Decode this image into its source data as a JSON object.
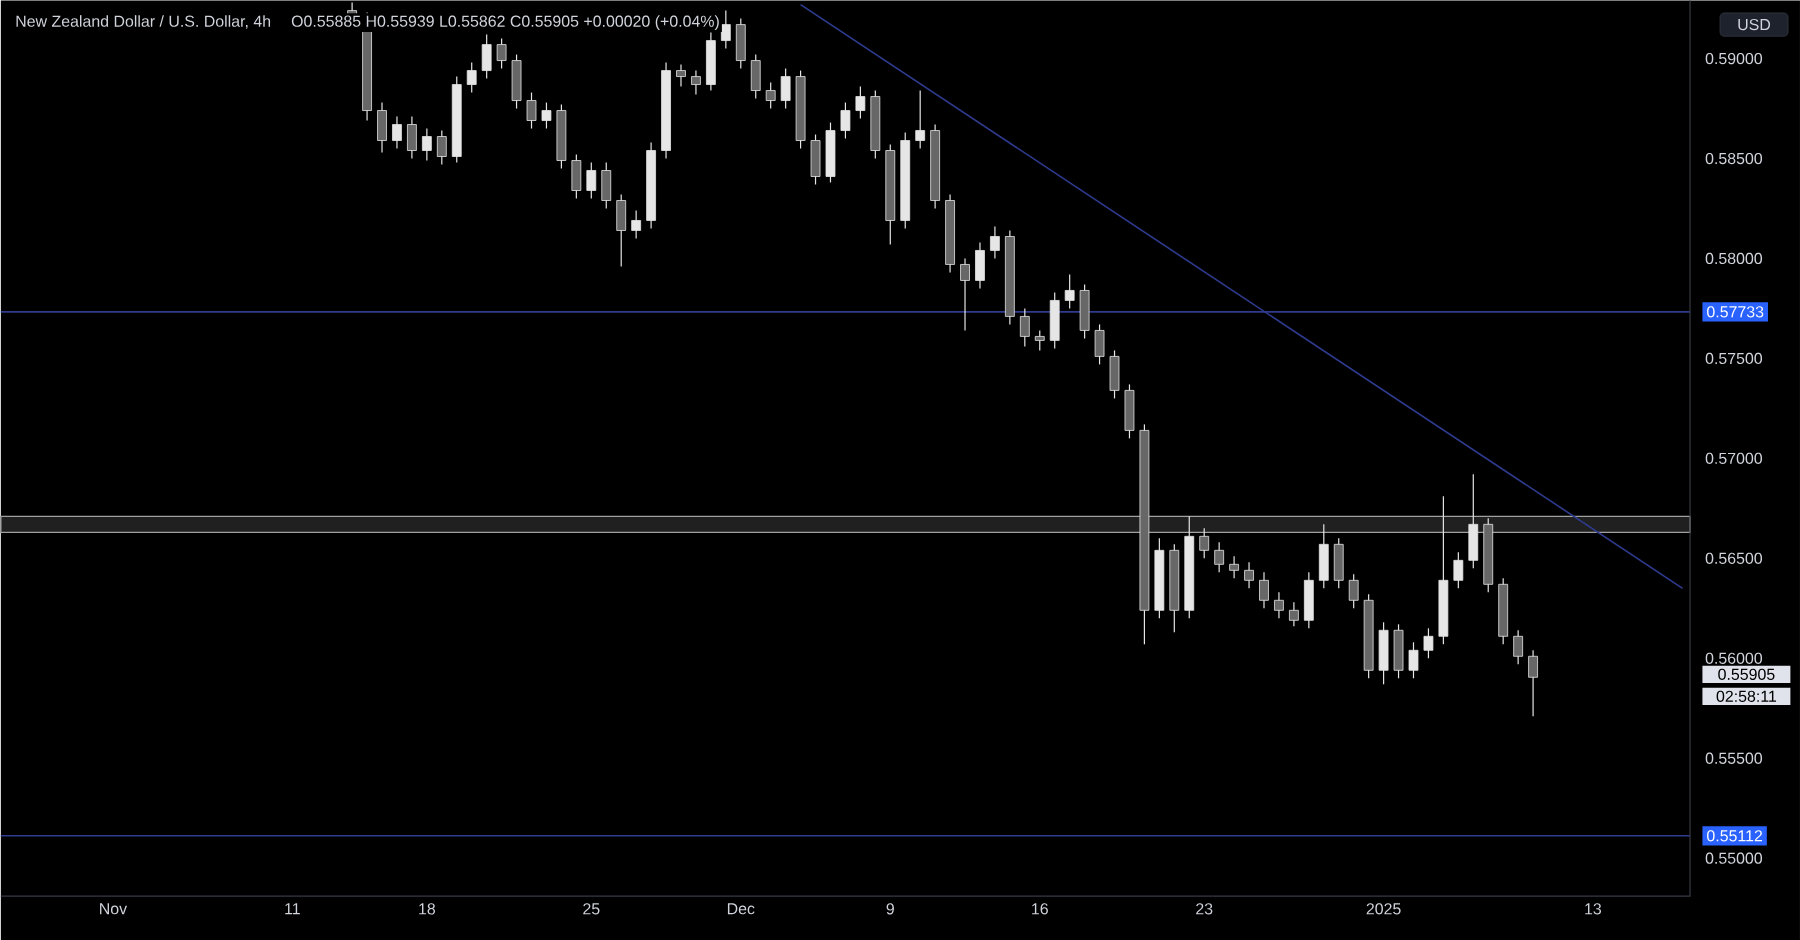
{
  "chart_data": {
    "type": "candlestick",
    "title": "New Zealand Dollar / U.S. Dollar, 4h",
    "subtitle": "O0.55885 H0.55939 L0.55862 C0.55905 +0.00020 (+0.04%)",
    "categories": [
      null,
      null,
      null,
      null,
      null,
      null,
      null,
      "Nov",
      null,
      null,
      null,
      null,
      null,
      null,
      null,
      null,
      null,
      null,
      null,
      "11",
      null,
      null,
      null,
      null,
      null,
      null,
      null,
      null,
      "18",
      null,
      null,
      null,
      null,
      null,
      null,
      null,
      null,
      null,
      null,
      "25",
      null,
      null,
      null,
      null,
      null,
      null,
      null,
      null,
      null,
      "Dec",
      null,
      null,
      null,
      null,
      null,
      null,
      null,
      null,
      null,
      "9",
      null,
      null,
      null,
      null,
      null,
      null,
      null,
      null,
      null,
      "16",
      null,
      null,
      null,
      null,
      null,
      null,
      null,
      null,
      null,
      null,
      "23",
      null,
      null,
      null,
      null,
      null,
      null,
      null,
      null,
      null,
      null,
      null,
      "2025",
      null,
      null,
      null,
      null,
      null,
      null,
      null,
      null,
      null,
      null,
      null,
      null,
      null,
      "13",
      null,
      null,
      null,
      null,
      null,
      null
    ],
    "color": "#e6e6e6",
    "ohlc": [
      null,
      null,
      null,
      null,
      null,
      null,
      null,
      null,
      null,
      null,
      null,
      null,
      null,
      null,
      null,
      null,
      null,
      null,
      null,
      null,
      null,
      null,
      null,
      [
        0.5924,
        0.5928,
        0.5915,
        0.5921
      ],
      [
        0.5921,
        0.5923,
        0.5869,
        0.5874
      ],
      [
        0.5874,
        0.5878,
        0.5853,
        0.5859
      ],
      [
        0.5859,
        0.5871,
        0.5855,
        0.5867
      ],
      [
        0.5867,
        0.5871,
        0.585,
        0.5854
      ],
      [
        0.5854,
        0.5865,
        0.5849,
        0.5861
      ],
      [
        0.5861,
        0.5864,
        0.5847,
        0.5851
      ],
      [
        0.5851,
        0.5891,
        0.5848,
        0.5887
      ],
      [
        0.5887,
        0.5898,
        0.5883,
        0.5894
      ],
      [
        0.5894,
        0.5912,
        0.589,
        0.5907
      ],
      [
        0.5907,
        0.591,
        0.5895,
        0.5899
      ],
      [
        0.5899,
        0.5902,
        0.5875,
        0.5879
      ],
      [
        0.5879,
        0.5883,
        0.5865,
        0.5869
      ],
      [
        0.5869,
        0.5878,
        0.5865,
        0.5874
      ],
      [
        0.5874,
        0.5877,
        0.5845,
        0.5849
      ],
      [
        0.5849,
        0.5852,
        0.583,
        0.5834
      ],
      [
        0.5834,
        0.5848,
        0.583,
        0.5844
      ],
      [
        0.5844,
        0.5848,
        0.5825,
        0.5829
      ],
      [
        0.5829,
        0.5832,
        0.5796,
        0.5814
      ],
      [
        0.5814,
        0.5824,
        0.581,
        0.5819
      ],
      [
        0.5819,
        0.5858,
        0.5815,
        0.5854
      ],
      [
        0.5854,
        0.5898,
        0.585,
        0.5894
      ],
      [
        0.5894,
        0.5897,
        0.5886,
        0.5891
      ],
      [
        0.5891,
        0.5894,
        0.5882,
        0.5887
      ],
      [
        0.5887,
        0.5913,
        0.5884,
        0.5909
      ],
      [
        0.5909,
        0.5924,
        0.5905,
        0.5917
      ],
      [
        0.5917,
        0.592,
        0.5895,
        0.5899
      ],
      [
        0.5899,
        0.5902,
        0.588,
        0.5884
      ],
      [
        0.5884,
        0.5888,
        0.5875,
        0.5879
      ],
      [
        0.5879,
        0.5895,
        0.5875,
        0.5891
      ],
      [
        0.5891,
        0.5894,
        0.5855,
        0.5859
      ],
      [
        0.5859,
        0.5862,
        0.5837,
        0.5841
      ],
      [
        0.5841,
        0.5868,
        0.5838,
        0.5864
      ],
      [
        0.5864,
        0.5878,
        0.586,
        0.5874
      ],
      [
        0.5874,
        0.5886,
        0.587,
        0.5881
      ],
      [
        0.5881,
        0.5884,
        0.585,
        0.5854
      ],
      [
        0.5854,
        0.5857,
        0.5807,
        0.5819
      ],
      [
        0.5819,
        0.5863,
        0.5815,
        0.5859
      ],
      [
        0.5859,
        0.5884,
        0.5855,
        0.5864
      ],
      [
        0.5864,
        0.5867,
        0.5825,
        0.5829
      ],
      [
        0.5829,
        0.5832,
        0.5793,
        0.5797
      ],
      [
        0.5797,
        0.58,
        0.5764,
        0.5789
      ],
      [
        0.5789,
        0.5808,
        0.5785,
        0.5804
      ],
      [
        0.5804,
        0.5816,
        0.58,
        0.5811
      ],
      [
        0.5811,
        0.5814,
        0.5767,
        0.5771
      ],
      [
        0.5771,
        0.5775,
        0.5756,
        0.5761
      ],
      [
        0.5761,
        0.5764,
        0.5754,
        0.5759
      ],
      [
        0.5759,
        0.5783,
        0.5755,
        0.5779
      ],
      [
        0.5779,
        0.5792,
        0.5775,
        0.5784
      ],
      [
        0.5784,
        0.5787,
        0.576,
        0.5764
      ],
      [
        0.5764,
        0.5767,
        0.5747,
        0.5751
      ],
      [
        0.5751,
        0.5754,
        0.573,
        0.5734
      ],
      [
        0.5734,
        0.5737,
        0.571,
        0.5714
      ],
      [
        0.5714,
        0.5717,
        0.5607,
        0.5624
      ],
      [
        0.5624,
        0.566,
        0.562,
        0.5654
      ],
      [
        0.5654,
        0.5657,
        0.5613,
        0.5624
      ],
      [
        0.5624,
        0.5671,
        0.562,
        0.5661
      ],
      [
        0.5661,
        0.5665,
        0.565,
        0.5654
      ],
      [
        0.5654,
        0.5658,
        0.5643,
        0.5647
      ],
      [
        0.5647,
        0.5651,
        0.564,
        0.5644
      ],
      [
        0.5644,
        0.5648,
        0.5635,
        0.5639
      ],
      [
        0.5639,
        0.5643,
        0.5625,
        0.5629
      ],
      [
        0.5629,
        0.5633,
        0.562,
        0.5624
      ],
      [
        0.5624,
        0.5628,
        0.5616,
        0.5619
      ],
      [
        0.5619,
        0.5643,
        0.5615,
        0.5639
      ],
      [
        0.5639,
        0.5667,
        0.5635,
        0.5657
      ],
      [
        0.5657,
        0.566,
        0.5635,
        0.5639
      ],
      [
        0.5639,
        0.5642,
        0.5625,
        0.5629
      ],
      [
        0.5629,
        0.5632,
        0.559,
        0.5594
      ],
      [
        0.5594,
        0.5618,
        0.5587,
        0.5614
      ],
      [
        0.5614,
        0.5617,
        0.559,
        0.5594
      ],
      [
        0.5594,
        0.5608,
        0.559,
        0.5604
      ],
      [
        0.5604,
        0.5615,
        0.56,
        0.5611
      ],
      [
        0.5611,
        0.5681,
        0.5607,
        0.5639
      ],
      [
        0.5639,
        0.5653,
        0.5635,
        0.5649
      ],
      [
        0.5649,
        0.5692,
        0.5645,
        0.5667
      ],
      [
        0.5667,
        0.567,
        0.5633,
        0.5637
      ],
      [
        0.5637,
        0.564,
        0.5607,
        0.5611
      ],
      [
        0.5611,
        0.5614,
        0.5597,
        0.5601
      ],
      [
        0.5601,
        0.5604,
        0.5571,
        0.55905
      ],
      null,
      null,
      null,
      null,
      null,
      null,
      null,
      null,
      null,
      null
    ],
    "series": [
      {
        "type": "line",
        "values": [
          null,
          null,
          null,
          null,
          null,
          null,
          null,
          null,
          null,
          null,
          null,
          null,
          null,
          null,
          null,
          null,
          null,
          null,
          null,
          null,
          null,
          null,
          null,
          null,
          null,
          null,
          null,
          null,
          null,
          null,
          null,
          null,
          null,
          null,
          null,
          null,
          null,
          null,
          null,
          null,
          null,
          null,
          null,
          null,
          null,
          null,
          null,
          null,
          null,
          null,
          null,
          null,
          null,
          0.5927,
          null,
          null,
          null,
          null,
          null,
          null,
          null,
          null,
          null,
          null,
          null,
          null,
          null,
          null,
          null,
          null,
          null,
          null,
          null,
          null,
          null,
          null,
          null,
          null,
          null,
          null,
          null,
          null,
          null,
          null,
          null,
          null,
          null,
          null,
          null,
          null,
          null,
          null,
          null,
          null,
          null,
          null,
          null,
          null,
          null,
          null,
          null,
          null,
          null,
          null,
          null,
          null,
          null,
          null,
          null,
          null,
          null,
          null,
          0.5635
        ],
        "color": "#2f3b8f"
      }
    ],
    "ylim": [
      0.5481,
      0.5929
    ],
    "yticks": [
      {
        "value": 0.55,
        "label": "0.55000"
      },
      {
        "value": 0.555,
        "label": "0.55500"
      },
      {
        "value": 0.56,
        "label": "0.56000"
      },
      {
        "value": 0.565,
        "label": "0.56500"
      },
      {
        "value": 0.57,
        "label": "0.57000"
      },
      {
        "value": 0.575,
        "label": "0.57500"
      },
      {
        "value": 0.58,
        "label": "0.58000"
      },
      {
        "value": 0.585,
        "label": "0.58500"
      },
      {
        "value": 0.59,
        "label": "0.59000"
      }
    ],
    "ref_lines": [
      {
        "axis": "y",
        "value": 0.57733,
        "label": "0.57733",
        "color": "#2f3b8f"
      },
      {
        "axis": "y",
        "value": 0.55112,
        "label": "0.55112",
        "color": "#2f3b8f"
      }
    ],
    "bands": [
      {
        "axis": "y",
        "from": 0.5663,
        "to": 0.5671,
        "color": "#a0a0a0"
      }
    ],
    "annotations": [
      "USD",
      "0.55905",
      "02:58:11"
    ]
  }
}
